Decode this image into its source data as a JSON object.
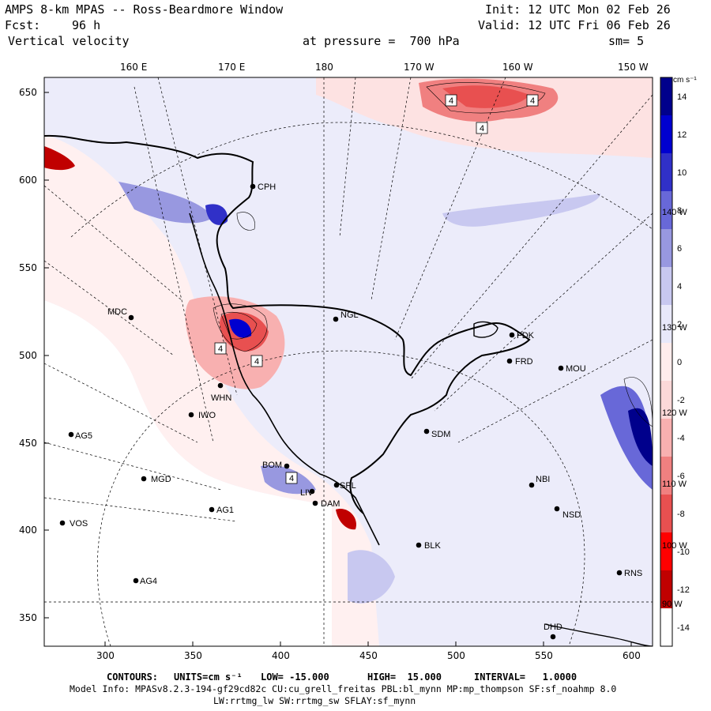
{
  "header": {
    "title": "AMPS 8-km MPAS -- Ross-Beardmore Window",
    "init": "Init: 12 UTC Mon 02 Feb 26",
    "fcst_label": "Fcst:",
    "fcst_value": "96 h",
    "valid": "Valid: 12 UTC Fri 06 Feb 26",
    "field": "Vertical velocity",
    "level": "at pressure =  700 hPa",
    "smooth": "sm= 5"
  },
  "axes": {
    "top_labels": [
      "160 E",
      "170 E",
      "180",
      "170 W",
      "160 W",
      "150 W"
    ],
    "y_ticks": [
      350,
      400,
      450,
      500,
      550,
      600,
      650
    ],
    "x_ticks": [
      300,
      350,
      400,
      450,
      500,
      550,
      600
    ],
    "right_labels": [
      "140 W",
      "130 W",
      "120 W",
      "110 W",
      "100 W",
      "90 W"
    ]
  },
  "colorbar": {
    "unit": "cm s⁻¹",
    "levels": [
      -14,
      -12,
      -10,
      -8,
      -6,
      -4,
      -2,
      0,
      2,
      4,
      6,
      8,
      10,
      12,
      14
    ],
    "colors": [
      "#ffffff",
      "#c00000",
      "#ff0000",
      "#e85050",
      "#f08080",
      "#f8b0b0",
      "#fcd8d8",
      "#ffecec",
      "#e8e8fa",
      "#c8c8f0",
      "#9898e0",
      "#6868d8",
      "#3030c8",
      "#0000d0",
      "#00008c"
    ]
  },
  "stations": [
    {
      "name": "CPH"
    },
    {
      "name": "NGL"
    },
    {
      "name": "MDC"
    },
    {
      "name": "FDK"
    },
    {
      "name": "FRD"
    },
    {
      "name": "MOU"
    },
    {
      "name": "WHN"
    },
    {
      "name": "IWO"
    },
    {
      "name": "AG5"
    },
    {
      "name": "SDM"
    },
    {
      "name": "MGD"
    },
    {
      "name": "BOM"
    },
    {
      "name": "SPL"
    },
    {
      "name": "LIV"
    },
    {
      "name": "DAM"
    },
    {
      "name": "AG1"
    },
    {
      "name": "VOS"
    },
    {
      "name": "BLK"
    },
    {
      "name": "NBI"
    },
    {
      "name": "NSD"
    },
    {
      "name": "AG4"
    },
    {
      "name": "RNS"
    },
    {
      "name": "DHD"
    }
  ],
  "contour_marks": [
    "4",
    "4",
    "4",
    "4",
    "4",
    "4"
  ],
  "footer": {
    "contours_label": "CONTOURS:",
    "units": "UNITS=cm s⁻¹",
    "low": "LOW= -15.000",
    "high": "HIGH=  15.000",
    "interval": "INTERVAL=   1.0000",
    "model_info": "Model Info: MPASv8.2.3-194-gf29cd82c CU:cu_grell_freitas PBL:bl_mynn MP:mp_thompson SF:sf_noahmp 8.0",
    "model_info2": "LW:rrtmg_lw SW:rrtmg_sw SFLAY:sf_mynn"
  }
}
